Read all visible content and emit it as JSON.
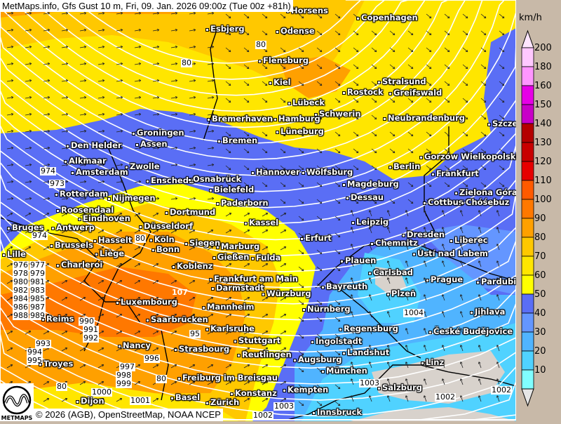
{
  "title": "MetMaps.info, Gfs Gust 10 m, Fri, 09. Jan. 2026 09:00z (Tue 00z +81h)",
  "credit": "© 2026 (AGB), OpenStreetMap, NOAA NCEP",
  "logo_text": "METMAPS",
  "legend": {
    "unit": "km/h",
    "levels": [
      {
        "label": "200",
        "color": "#ffc8ff"
      },
      {
        "label": "180",
        "color": "#ff96ff"
      },
      {
        "label": "160",
        "color": "#e600e6"
      },
      {
        "label": "150",
        "color": "#c800c8"
      },
      {
        "label": "140",
        "color": "#b40000"
      },
      {
        "label": "130",
        "color": "#c80000"
      },
      {
        "label": "120",
        "color": "#e60000"
      },
      {
        "label": "110",
        "color": "#ff5a00"
      },
      {
        "label": "100",
        "color": "#ff7800"
      },
      {
        "label": "90",
        "color": "#ffa000"
      },
      {
        "label": "80",
        "color": "#ffc800"
      },
      {
        "label": "70",
        "color": "#ffe600"
      },
      {
        "label": "60",
        "color": "#ffff00"
      },
      {
        "label": "50",
        "color": "#5a6ef5"
      },
      {
        "label": "40",
        "color": "#6496ff"
      },
      {
        "label": "30",
        "color": "#50b4ff"
      },
      {
        "label": "20",
        "color": "#50d2ff"
      },
      {
        "label": "10",
        "color": "#80ffff"
      }
    ],
    "top_arrow_color": "#ffe6ff",
    "bottom_arrow_color": "#e6e6e6"
  },
  "cities": [
    "Horsens",
    "Copenhagen",
    "Esbjerg",
    "Odense",
    "Flensburg",
    "Kiel",
    "Stralsund",
    "Rostock",
    "Greifswald",
    "Lübeck",
    "Schwerin",
    "Neubrandenburg",
    "Szczecin",
    "Bremerhaven",
    "Hamburg",
    "Groningen",
    "Lüneburg",
    "Assen",
    "Bremen",
    "Den Helder",
    "Gorzów Wielkopolski",
    "Alkmaar",
    "Amsterdam",
    "Zwolle",
    "Berlin",
    "Frankfurt",
    "Hannover",
    "Wolfsburg",
    "Enschede",
    "Osnabrück",
    "Bielefeld",
    "Magdeburg",
    "Zielona Góra",
    "Rotterdam",
    "Nijmegen",
    "Dessau",
    "Paderborn",
    "Cottbus",
    "Chóśebuz",
    "Roosendaal",
    "Eindhoven",
    "Dortmund",
    "Kassel",
    "Leipzig",
    "Bruges",
    "Antwerp",
    "Düsseldorf",
    "Dresden",
    "Hasselt",
    "Köln",
    "Erfurt",
    "Siegen",
    "Marburg",
    "Chemnitz",
    "Ústí nad Labem",
    "Liberec",
    "Brussels",
    "Bonn",
    "Lille",
    "Liège",
    "Gießen",
    "Fulda",
    "Plauen",
    "Charleroi",
    "Koblenz",
    "Carlsbad",
    "Prague",
    "Pardubice",
    "Frankfurt am Main",
    "Bayreuth",
    "Darmstadt",
    "Würzburg",
    "Plzeň",
    "Luxembourg",
    "Mannheim",
    "Nürnberg",
    "Jihlava",
    "Reims",
    "Saarbrücken",
    "Regensburg",
    "České Budějovice",
    "Karlsruhe",
    "Stuttgart",
    "Ingolstadt",
    "Nancy",
    "Strasbourg",
    "Landshut",
    "Reutlingen",
    "Augsburg",
    "Troyes",
    "Linz",
    "München",
    "Freiburg im Breisgau",
    "Salzburg",
    "Kempten",
    "Konstanz",
    "Basel",
    "Zürich",
    "Innsbruck",
    "Dijon"
  ],
  "pressure_labels": [
    "974",
    "973",
    "974",
    "976",
    "977",
    "978",
    "979",
    "980",
    "981",
    "982",
    "983",
    "984",
    "985",
    "986",
    "987",
    "988",
    "989",
    "990",
    "991",
    "992",
    "993",
    "994",
    "995",
    "996",
    "997",
    "998",
    "999",
    "1000",
    "1001",
    "1002",
    "1003",
    "1004",
    "1002",
    "1003",
    "1002"
  ],
  "gust_labels": [
    "80",
    "80",
    "80",
    "80",
    "80",
    "107",
    "95"
  ]
}
